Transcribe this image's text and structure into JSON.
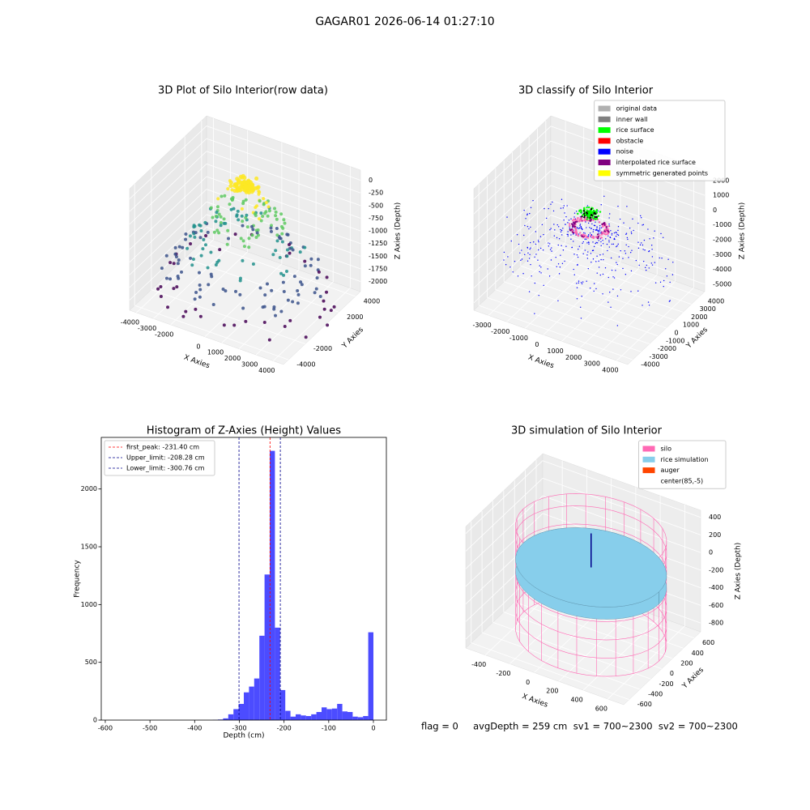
{
  "title": "GAGAR01 2026-06-14 01:27:10",
  "footer": "flag = 0     avgDepth = 259 cm  sv1 = 700~2300  sv2 = 700~2300",
  "chart_data": [
    {
      "type": "scatter3d",
      "title": "3D Plot of Silo Interior(row data)",
      "xlabel": "X Axies",
      "ylabel": "Y Axies",
      "zlabel": "Z Axies (Depth)",
      "xlim": [
        -4400,
        4600
      ],
      "ylim": [
        -4600,
        4600
      ],
      "zlim": [
        -2200,
        200
      ],
      "xticks": [
        -4000,
        -3000,
        -2000,
        0,
        1000,
        2000,
        3000,
        4000
      ],
      "yticks": [
        -4000,
        -2000,
        2000,
        4000
      ],
      "zticks": [
        0,
        -250,
        -500,
        -750,
        -1000,
        -1250,
        -1500,
        -1750,
        -2000
      ]
    },
    {
      "type": "classify3d",
      "title": "3D classify of Silo Interior",
      "xlabel": "X Axies",
      "ylabel": "Y Axies",
      "zlabel": "Z Axies (Depth)",
      "xlim": [
        -3800,
        4600
      ],
      "ylim": [
        -4600,
        4600
      ],
      "zlim": [
        -5500,
        2700
      ],
      "xticks": [
        -3000,
        -2000,
        -1000,
        0,
        1000,
        2000,
        3000,
        4000
      ],
      "yticks": [
        -4000,
        -3000,
        -2000,
        -1000,
        0,
        1000,
        2000,
        3000,
        4000
      ],
      "zticks": [
        -5000,
        -4000,
        -3000,
        -2000,
        -1000,
        0,
        1000,
        2000
      ],
      "legend_loc": "upper right",
      "legend": [
        {
          "name": "original data",
          "color": "#b0b0b0"
        },
        {
          "name": "inner wall",
          "color": "#808080"
        },
        {
          "name": "rice surface",
          "color": "#00ff00"
        },
        {
          "name": "obstacle",
          "color": "#ff0000"
        },
        {
          "name": "noise",
          "color": "#0000ff"
        },
        {
          "name": "interpolated rice surface",
          "color": "#800080"
        },
        {
          "name": "symmetric generated points",
          "color": "#ffff00"
        }
      ]
    },
    {
      "type": "histogram",
      "title": "Histogram of Z-Axies (Height) Values",
      "xlabel": "Depth (cm)",
      "ylabel": "Frequency",
      "color": "#4c4cff",
      "bins": [
        -580,
        -568.4,
        -556.8,
        -545.2,
        -533.6,
        -522,
        -510.4,
        -498.8,
        -487.2,
        -475.6,
        -464,
        -452.4,
        -440.8,
        -429.2,
        -417.6,
        -406,
        -394.4,
        -382.8,
        -371.2,
        -359.6,
        -348,
        -336.4,
        -324.8,
        -313.2,
        -301.6,
        -290,
        -278.4,
        -266.8,
        -255.2,
        -243.6,
        -232,
        -220.4,
        -208.8,
        -197.2,
        -185.6,
        -174,
        -162.4,
        -150.8,
        -139.2,
        -127.6,
        -116,
        -104.4,
        -92.8,
        -81.2,
        -69.6,
        -58,
        -46.4,
        -34.8,
        -23.2,
        -11.6,
        0
      ],
      "values": [
        0,
        0,
        0,
        0,
        0,
        0,
        0,
        0,
        0,
        0,
        0,
        0,
        0,
        0,
        0,
        0,
        0,
        0,
        0,
        2,
        5,
        15,
        50,
        95,
        140,
        240,
        290,
        360,
        730,
        1260,
        2330,
        800,
        260,
        80,
        30,
        50,
        40,
        35,
        50,
        70,
        110,
        95,
        100,
        140,
        75,
        70,
        30,
        25,
        35,
        760
      ],
      "xlim": [
        -609,
        29
      ],
      "ylim": [
        0,
        2446.5
      ],
      "xticks": [
        -600,
        -500,
        -400,
        -300,
        -200,
        -100,
        0
      ],
      "yticks": [
        0,
        500,
        1000,
        1500,
        2000
      ],
      "legend_loc": "upper left",
      "lines": [
        {
          "name": "first_peak: -231.40 cm",
          "value": -231.4,
          "color": "#ff0000"
        },
        {
          "name": "Upper_limit: -208.28 cm",
          "value": -208.28,
          "color": "#00008b"
        },
        {
          "name": "Lower_limit: -300.76 cm",
          "value": -300.76,
          "color": "#00008b"
        }
      ]
    },
    {
      "type": "simulation3d",
      "title": "3D simulation of Silo Interior",
      "xlabel": "X Axies",
      "ylabel": "Y Axies",
      "zlabel": "Z Axies (Depth)",
      "xlim": [
        -560,
        730
      ],
      "ylim": [
        -700,
        720
      ],
      "zlim": [
        -900,
        480
      ],
      "xticks": [
        -400,
        -200,
        0,
        200,
        400,
        600
      ],
      "yticks": [
        -600,
        -400,
        -200,
        0,
        200,
        400,
        600
      ],
      "zticks": [
        -800,
        -600,
        -400,
        -200,
        0,
        200,
        400
      ],
      "legend_loc": "upper right",
      "legend": [
        {
          "name": "silo",
          "color": "#ff69b4"
        },
        {
          "name": "rice simulation",
          "color": "#87ceeb"
        },
        {
          "name": "auger",
          "color": "#ff4500"
        },
        {
          "name": "center(85,-5)",
          "color": "#ffffff"
        }
      ]
    }
  ]
}
